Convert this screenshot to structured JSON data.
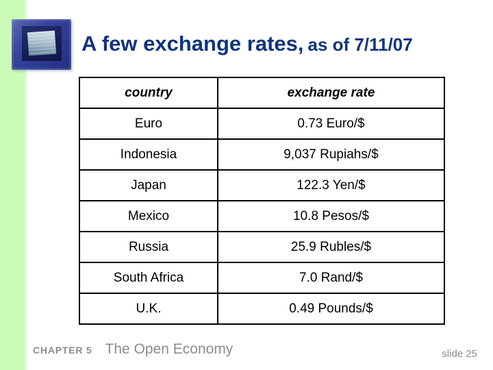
{
  "title": {
    "main": "A few exchange rates,",
    "suffix": "as of 7/11/07"
  },
  "table": {
    "headers": {
      "country": "country",
      "rate": "exchange rate"
    },
    "rows": [
      {
        "country": "Euro",
        "rate": "0.73 Euro/$"
      },
      {
        "country": "Indonesia",
        "rate": "9,037 Rupiahs/$"
      },
      {
        "country": "Japan",
        "rate": "122.3 Yen/$"
      },
      {
        "country": "Mexico",
        "rate": "10.8 Pesos/$"
      },
      {
        "country": "Russia",
        "rate": "25.9 Rubles/$"
      },
      {
        "country": "South Africa",
        "rate": "7.0 Rand/$"
      },
      {
        "country": "U.K.",
        "rate": "0.49 Pounds/$"
      }
    ]
  },
  "footer": {
    "chapter": "CHAPTER 5",
    "book_title": "The Open Economy",
    "slide_number": "slide 25"
  },
  "colors": {
    "title_text": "#0f3480",
    "accent_strip": "#ccfbb8",
    "logo_outer_blue": "#2b3890",
    "logo_frame_navy": "#171f58",
    "logo_pane_bluegray": "#a9bfce",
    "table_border": "#000000",
    "table_text": "#000000",
    "footer_text": "#8c8c8c",
    "background": "#ffffff"
  }
}
